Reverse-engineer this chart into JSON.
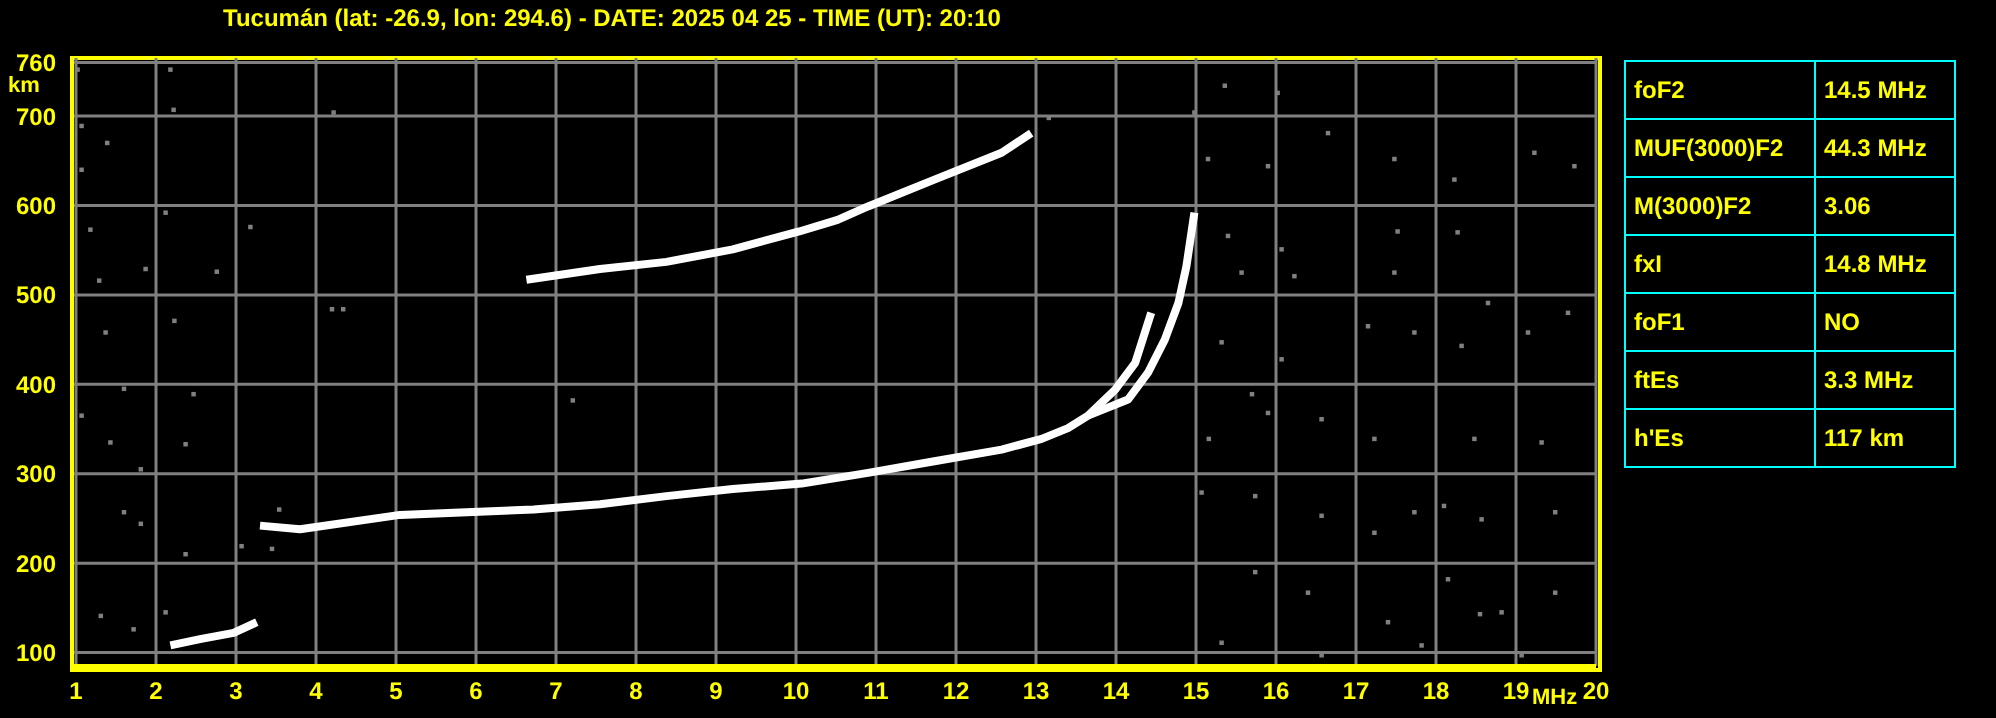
{
  "chart_data": [
    {
      "type": "line",
      "title": "Tucumán (lat: -26.9, lon: 294.6) - DATE: 2025 04 25 - TIME (UT): 20:10",
      "xlabel": "MHz",
      "ylabel": "km",
      "xlim": [
        0.95,
        20
      ],
      "ylim": [
        85,
        765
      ],
      "xticks": [
        1,
        2,
        3,
        4,
        5,
        6,
        7,
        8,
        9,
        10,
        11,
        12,
        13,
        14,
        15,
        16,
        17,
        18,
        19,
        20
      ],
      "yticks": [
        100,
        200,
        300,
        400,
        500,
        600,
        700,
        760
      ],
      "grid": true,
      "line_style": "solid",
      "series": [
        {
          "type": "line",
          "color": "#ffffff",
          "x": [
            3.3,
            3.8,
            5.05,
            6.72,
            7.55,
            8.38,
            9.21,
            10.07,
            10.9,
            11.73,
            12.57,
            13.07,
            13.4,
            13.65,
            13.99,
            14.24,
            14.44
          ],
          "values": [
            242,
            238,
            254,
            260,
            266,
            275,
            283,
            289,
            301,
            314,
            327,
            339,
            351,
            365,
            394,
            424,
            480
          ]
        },
        {
          "type": "line",
          "color": "#ffffff",
          "x": [
            13.65,
            14.15,
            14.4,
            14.61,
            14.78,
            14.88,
            14.98
          ],
          "values": [
            365,
            383,
            413,
            450,
            491,
            532,
            592
          ]
        },
        {
          "type": "line",
          "color": "#ffffff",
          "x": [
            6.63,
            7.55,
            8.38,
            9.21,
            10.04,
            10.52,
            10.9,
            11.73,
            12.57,
            12.94
          ],
          "values": [
            517,
            529,
            537,
            551,
            571,
            584,
            599,
            629,
            659,
            681
          ]
        },
        {
          "type": "line",
          "color": "#ffffff",
          "x": [
            2.18,
            2.55,
            2.97,
            3.26
          ],
          "values": [
            108,
            115,
            122,
            134
          ]
        },
        {
          "type": "scatter",
          "color": "#808080",
          "marker": "square",
          "x": [
            1.02,
            1.07,
            1.07,
            1.39,
            1.18,
            1.87,
            1.29,
            1.37,
            1.6,
            1.07,
            1.43,
            1.81,
            1.6,
            1.81,
            1.31,
            1.72,
            2.18,
            2.22,
            2.12,
            2.23,
            2.47,
            2.37,
            2.37,
            2.12,
            4.22,
            4.2,
            4.34,
            7.21,
            3.18,
            2.76,
            3.07,
            3.45,
            3.54,
            15.36,
            16.02,
            15.15,
            15.9,
            16.65,
            17.48,
            18.23,
            19.23,
            19.73,
            15.4,
            16.07,
            17.52,
            18.27,
            15.57,
            16.23,
            17.48,
            18.65,
            19.65,
            15.32,
            16.07,
            17.15,
            17.73,
            18.32,
            19.15,
            15.16,
            15.9,
            16.57,
            17.23,
            18.48,
            19.32,
            15.07,
            15.74,
            16.57,
            17.23,
            18.1,
            18.57,
            19.49,
            15.74,
            16.4,
            17.4,
            18.15,
            18.82,
            19.49,
            15.32,
            16.57,
            17.82,
            19.07,
            14.98,
            13.16,
            17.73,
            18.55,
            15.7
          ],
          "values": [
            752,
            689,
            640,
            670,
            573,
            529,
            516,
            458,
            395,
            365,
            335,
            305,
            257,
            244,
            141,
            126,
            752,
            707,
            592,
            471,
            389,
            333,
            210,
            145,
            704,
            484,
            484,
            382,
            576,
            526,
            219,
            216,
            260,
            734,
            726,
            652,
            644,
            681,
            652,
            629,
            659,
            644,
            566,
            551,
            571,
            570,
            525,
            521,
            525,
            491,
            480,
            447,
            428,
            465,
            458,
            443,
            458,
            339,
            368,
            361,
            339,
            339,
            335,
            279,
            275,
            253,
            234,
            264,
            249,
            257,
            190,
            167,
            134,
            182,
            145,
            167,
            111,
            97,
            108,
            97,
            704,
            698,
            257,
            143,
            389
          ]
        }
      ]
    },
    {
      "type": "other",
      "annotations": [
        "foF2",
        "14.5 MHz",
        "MUF(3000)F2",
        "44.3 MHz",
        "M(3000)F2",
        "3.06",
        "fxI",
        "14.8 MHz",
        "foF1",
        "NO",
        "ftEs",
        "3.3 MHz",
        "h'Es",
        "117 km"
      ]
    }
  ]
}
